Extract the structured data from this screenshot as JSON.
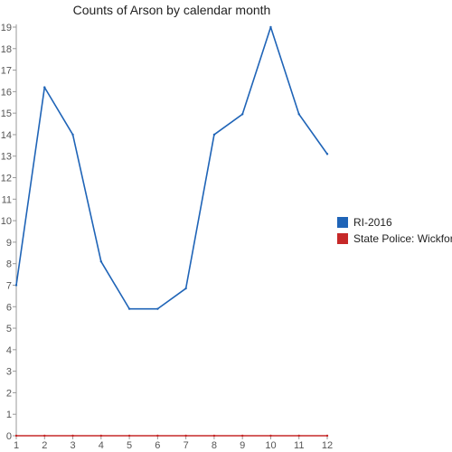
{
  "chart_data": {
    "type": "line",
    "title": "Counts of Arson by calendar month",
    "xlabel": "",
    "ylabel": "",
    "x": [
      1,
      2,
      3,
      4,
      5,
      6,
      7,
      8,
      9,
      10,
      11,
      12
    ],
    "ylim": [
      0,
      19
    ],
    "yticks": [
      0,
      1,
      2,
      3,
      4,
      5,
      6,
      7,
      8,
      9,
      10,
      11,
      12,
      13,
      14,
      15,
      16,
      17,
      18,
      19
    ],
    "grid": false,
    "legend_position": "right",
    "series": [
      {
        "name": "RI-2016",
        "color": "#1f64b7",
        "values": [
          7,
          16.2,
          14,
          8.1,
          5.9,
          5.9,
          6.85,
          14,
          14.95,
          19,
          14.95,
          13.1
        ]
      },
      {
        "name": "State Police: Wickford",
        "color": "#c62828",
        "values": [
          0,
          0,
          0,
          0,
          0,
          0,
          0,
          0,
          0,
          0,
          0,
          0
        ]
      }
    ]
  }
}
